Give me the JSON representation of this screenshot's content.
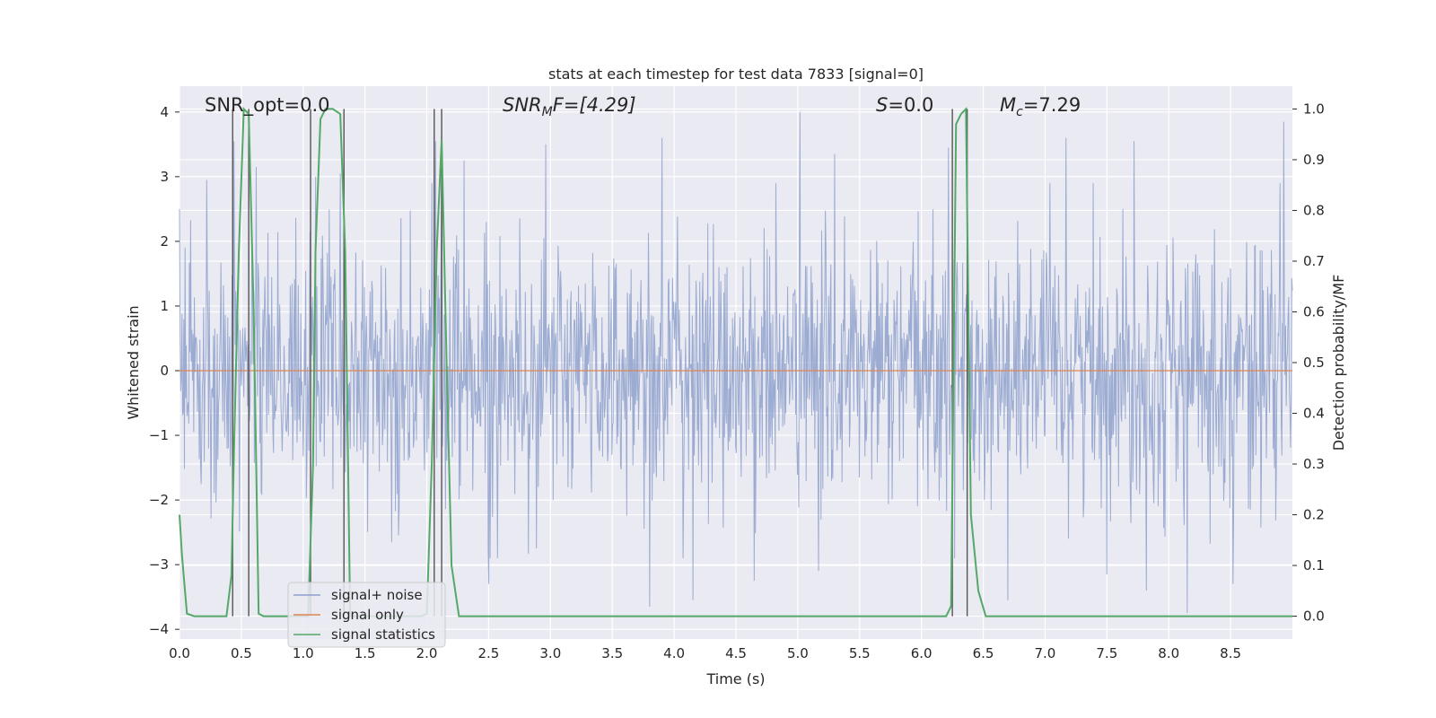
{
  "chart_data": {
    "type": "line",
    "title": "stats at each timestep for test data 7833 [signal=0]",
    "xlabel": "Time (s)",
    "ylabel": "Whitened strain",
    "y2label": "Detection probability/MF",
    "xlim": [
      0,
      9.0
    ],
    "ylim": [
      -4.15,
      4.4
    ],
    "y2lim": [
      -0.045,
      1.045
    ],
    "x_ticks": [
      "0.0",
      "0.5",
      "1.0",
      "1.5",
      "2.0",
      "2.5",
      "3.0",
      "3.5",
      "4.0",
      "4.5",
      "5.0",
      "5.5",
      "6.0",
      "6.5",
      "7.0",
      "7.5",
      "8.0",
      "8.5"
    ],
    "y_ticks": [
      "4",
      "3",
      "2",
      "1",
      "0",
      "−1",
      "−2",
      "−3",
      "−4"
    ],
    "y2_ticks": [
      "1.0",
      "0.9",
      "0.8",
      "0.7",
      "0.6",
      "0.5",
      "0.4",
      "0.3",
      "0.2",
      "0.1",
      "0.0"
    ],
    "annotations": [
      {
        "id": "snr-opt",
        "text": "SNR_opt=0.0",
        "base": "SNR_opt=0.0",
        "sub": ""
      },
      {
        "id": "snr-mf",
        "text": "SNR_MF=[4.29]",
        "base": "SNR",
        "sub": "M",
        "tail": "F=[4.29]"
      },
      {
        "id": "s-value",
        "text": "S=0.0",
        "base": "S",
        "sub": "",
        "tail": "=0.0"
      },
      {
        "id": "mc-value",
        "text": "M_c=7.29",
        "base": "M",
        "sub": "c",
        "tail": "=7.29"
      }
    ],
    "legend": {
      "placement": "lower-left",
      "entries": [
        {
          "label": "signal+ noise",
          "color": "#8da0cb"
        },
        {
          "label": "signal only",
          "color": "#dd8452"
        },
        {
          "label": "signal statistics",
          "color": "#55a868"
        }
      ]
    },
    "series": [
      {
        "name": "signal+ noise",
        "color": "#8da0cb",
        "description_type": "noise",
        "noise": {
          "sigma": 1.0,
          "samples": 1800,
          "seed": 7833
        },
        "peaks": [
          [
            0.0,
            2.5
          ],
          [
            0.22,
            2.95
          ],
          [
            0.44,
            3.55
          ],
          [
            0.62,
            3.15
          ],
          [
            1.1,
            3.0
          ],
          [
            1.3,
            3.05
          ],
          [
            2.07,
            3.55
          ],
          [
            2.12,
            3.6
          ],
          [
            2.3,
            3.25
          ],
          [
            2.96,
            3.5
          ],
          [
            3.9,
            3.6
          ],
          [
            5.02,
            4.0
          ],
          [
            5.3,
            3.35
          ],
          [
            6.22,
            3.45
          ],
          [
            7.17,
            3.6
          ],
          [
            7.72,
            3.55
          ],
          [
            8.15,
            3.3
          ],
          [
            8.93,
            3.85
          ],
          [
            2.5,
            -3.3
          ],
          [
            3.8,
            -3.65
          ],
          [
            4.15,
            -3.55
          ],
          [
            4.65,
            -3.25
          ],
          [
            5.17,
            -3.1
          ],
          [
            6.7,
            -3.55
          ],
          [
            7.5,
            -3.15
          ],
          [
            7.82,
            -3.4
          ],
          [
            8.15,
            -3.75
          ],
          [
            8.52,
            -3.3
          ]
        ]
      },
      {
        "name": "signal only",
        "color": "#dd8452",
        "x": [
          0.0,
          9.0
        ],
        "y": [
          0.0,
          0.0
        ]
      },
      {
        "name": "signal statistics",
        "color": "#55a868",
        "axis": "y2",
        "x": [
          0.0,
          0.02,
          0.06,
          0.12,
          0.38,
          0.42,
          0.44,
          0.48,
          0.52,
          0.56,
          0.6,
          0.64,
          0.68,
          1.04,
          1.08,
          1.1,
          1.14,
          1.18,
          1.24,
          1.3,
          1.34,
          1.38,
          1.96,
          2.0,
          2.04,
          2.08,
          2.12,
          2.16,
          2.2,
          2.26,
          6.2,
          6.24,
          6.28,
          6.32,
          6.36,
          6.4,
          6.46,
          6.52,
          9.0
        ],
        "y": [
          0.2,
          0.12,
          0.005,
          0.0,
          0.0,
          0.08,
          0.32,
          0.72,
          1.0,
          0.99,
          0.6,
          0.005,
          0.0,
          0.0,
          0.3,
          0.72,
          0.98,
          1.0,
          1.0,
          0.99,
          0.72,
          0.0,
          0.0,
          0.005,
          0.3,
          0.72,
          0.94,
          0.5,
          0.1,
          0.0,
          0.0,
          0.02,
          0.97,
          0.99,
          1.0,
          0.2,
          0.05,
          0.0,
          0.0
        ]
      }
    ],
    "vlines_x": [
      0.43,
      0.56,
      1.06,
      1.33,
      2.06,
      2.12,
      6.25,
      6.37
    ],
    "grid": true
  }
}
